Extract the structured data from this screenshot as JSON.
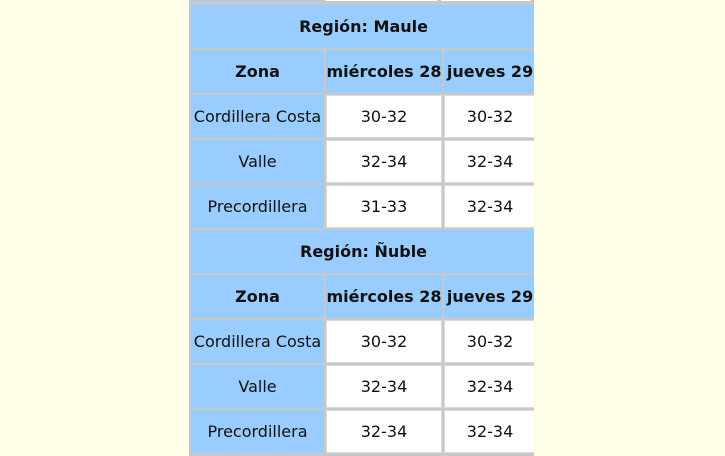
{
  "columns": {
    "zona": "Zona",
    "day1": "miércoles 28",
    "day2": "jueves 29"
  },
  "regions": [
    {
      "title": "Región: Maule",
      "rows": [
        {
          "zona": "Cordillera Costa",
          "day1": "30-32",
          "day2": "30-32"
        },
        {
          "zona": "Valle",
          "day1": "32-34",
          "day2": "32-34"
        },
        {
          "zona": "Precordillera",
          "day1": "31-33",
          "day2": "32-34"
        }
      ]
    },
    {
      "title": "Región: Ñuble",
      "rows": [
        {
          "zona": "Cordillera Costa",
          "day1": "30-32",
          "day2": "30-32"
        },
        {
          "zona": "Valle",
          "day1": "32-34",
          "day2": "32-34"
        },
        {
          "zona": "Precordillera",
          "day1": "32-34",
          "day2": "32-34"
        }
      ]
    }
  ],
  "colors": {
    "page_background": "#fdfde8",
    "header_blue": "#99ccff",
    "cell_white": "#ffffff",
    "grid_gray": "#c8c8c8"
  }
}
